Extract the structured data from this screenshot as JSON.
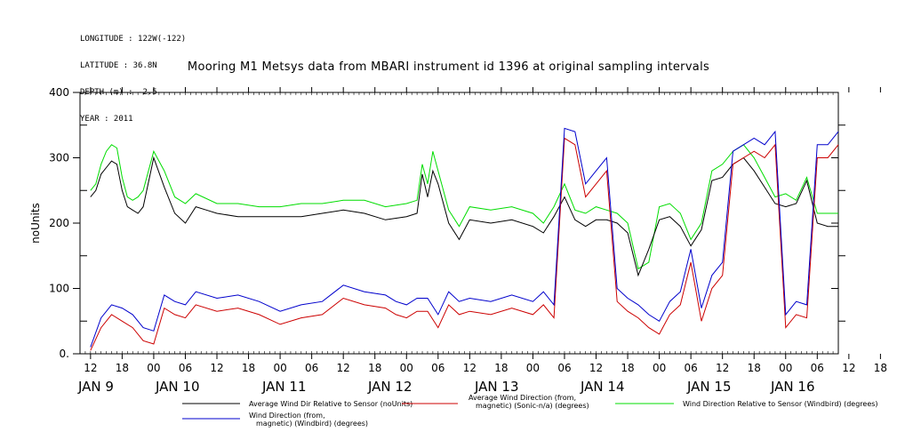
{
  "header": {
    "meta_lines": [
      "LONGITUDE : 122W(-122)",
      "LATITUDE : 36.8N",
      "DEPTH (m) : -2.5",
      "YEAR : 2011"
    ]
  },
  "chart_data": {
    "type": "line",
    "title": "Mooring M1 Metsys data from MBARI instrument id 1396 at original sampling intervals",
    "xlabel": "",
    "ylabel": "noUnits",
    "ylim": [
      0,
      400
    ],
    "xlim_hours": [
      -2,
      142
    ],
    "y_ticks": [
      0,
      100,
      200,
      300,
      400
    ],
    "y_tick_labels": [
      "0.",
      "100",
      "200",
      "300",
      "400"
    ],
    "x_tick_labels": [
      "12",
      "18",
      "00",
      "06",
      "12",
      "18",
      "00",
      "06",
      "12",
      "18",
      "00",
      "06",
      "12",
      "18",
      "00",
      "06",
      "12",
      "18",
      "00",
      "06",
      "12",
      "18",
      "00",
      "06",
      "12",
      "18",
      "00",
      "06",
      "12"
    ],
    "day_labels": [
      "JAN  9",
      "JAN 10",
      "JAN 11",
      "JAN 12",
      "JAN 13",
      "JAN 14",
      "JAN 15",
      "JAN 16"
    ],
    "grid": false,
    "legend": "bottom",
    "series": [
      {
        "name": "Average Wind Dir Relative to Sensor (noUnits)",
        "color": "#000000",
        "x": [
          0,
          1,
          2,
          3,
          4,
          5,
          6,
          7,
          8,
          9,
          10,
          12,
          14,
          16,
          18,
          20,
          22,
          24,
          28,
          32,
          36,
          40,
          44,
          48,
          52,
          56,
          60,
          62,
          63,
          64,
          65,
          66,
          68,
          70,
          72,
          76,
          80,
          84,
          86,
          88,
          90,
          92,
          94,
          96,
          98,
          100,
          102,
          104,
          106,
          108,
          110,
          112,
          114,
          116,
          118,
          120,
          122,
          124,
          126,
          128,
          130,
          132,
          134,
          136,
          138,
          140,
          142
        ],
        "values": [
          240,
          250,
          275,
          285,
          295,
          290,
          250,
          225,
          220,
          215,
          225,
          300,
          255,
          215,
          200,
          225,
          220,
          215,
          210,
          210,
          210,
          210,
          215,
          220,
          215,
          205,
          210,
          215,
          275,
          240,
          280,
          260,
          200,
          175,
          205,
          200,
          205,
          195,
          185,
          210,
          240,
          205,
          195,
          205,
          205,
          200,
          185,
          120,
          160,
          205,
          210,
          195,
          165,
          190,
          265,
          270,
          290,
          300,
          280,
          255,
          230,
          225,
          230,
          265,
          200,
          195,
          195
        ]
      },
      {
        "name": "Average Wind Direction (from, magnetic) (Sonic-n/a) (degrees)",
        "color": "#cc0000",
        "x": [
          0,
          2,
          4,
          6,
          8,
          10,
          12,
          14,
          16,
          18,
          20,
          24,
          28,
          32,
          36,
          40,
          44,
          48,
          52,
          56,
          58,
          60,
          62,
          64,
          66,
          68,
          70,
          72,
          76,
          80,
          84,
          86,
          88,
          90,
          92,
          94,
          96,
          98,
          100,
          102,
          104,
          106,
          108,
          110,
          112,
          114,
          116,
          118,
          120,
          122,
          124,
          126,
          128,
          130,
          132,
          134,
          136,
          138,
          140,
          142
        ],
        "values": [
          5,
          40,
          60,
          50,
          40,
          20,
          15,
          70,
          60,
          55,
          75,
          65,
          70,
          60,
          45,
          55,
          60,
          85,
          75,
          70,
          60,
          55,
          65,
          65,
          40,
          75,
          60,
          65,
          60,
          70,
          60,
          75,
          55,
          330,
          320,
          240,
          260,
          280,
          80,
          65,
          55,
          40,
          30,
          60,
          75,
          140,
          50,
          100,
          120,
          290,
          300,
          310,
          300,
          320,
          40,
          60,
          55,
          300,
          300,
          320
        ]
      },
      {
        "name": "Wind Direction Relative to Sensor (Windbird) (degrees)",
        "color": "#00dd00",
        "x": [
          0,
          1,
          2,
          3,
          4,
          5,
          6,
          7,
          8,
          9,
          10,
          12,
          14,
          16,
          18,
          20,
          24,
          28,
          32,
          36,
          40,
          44,
          48,
          52,
          56,
          60,
          62,
          63,
          64,
          65,
          66,
          68,
          70,
          72,
          76,
          80,
          84,
          86,
          88,
          90,
          92,
          94,
          96,
          98,
          100,
          102,
          104,
          106,
          108,
          110,
          112,
          114,
          116,
          118,
          120,
          122,
          124,
          126,
          128,
          130,
          132,
          134,
          136,
          138,
          140,
          142
        ],
        "values": [
          250,
          260,
          290,
          310,
          320,
          315,
          270,
          240,
          235,
          240,
          250,
          310,
          280,
          240,
          230,
          245,
          230,
          230,
          225,
          225,
          230,
          230,
          235,
          235,
          225,
          230,
          235,
          290,
          260,
          310,
          280,
          220,
          195,
          225,
          220,
          225,
          215,
          200,
          225,
          260,
          220,
          215,
          225,
          220,
          215,
          200,
          130,
          140,
          225,
          230,
          215,
          175,
          200,
          280,
          290,
          310,
          320,
          300,
          270,
          240,
          245,
          235,
          270,
          215,
          215,
          215
        ]
      },
      {
        "name": "Wind Direction (from, magnetic) (Windbird) (degrees)",
        "color": "#0000cc",
        "x": [
          0,
          2,
          4,
          6,
          8,
          10,
          12,
          14,
          16,
          18,
          20,
          24,
          28,
          32,
          36,
          40,
          44,
          48,
          52,
          56,
          58,
          60,
          62,
          64,
          66,
          68,
          70,
          72,
          76,
          80,
          84,
          86,
          88,
          90,
          92,
          94,
          96,
          98,
          100,
          102,
          104,
          106,
          108,
          110,
          112,
          114,
          116,
          118,
          120,
          122,
          124,
          126,
          128,
          130,
          132,
          134,
          136,
          138,
          140,
          142
        ],
        "values": [
          10,
          55,
          75,
          70,
          60,
          40,
          35,
          90,
          80,
          75,
          95,
          85,
          90,
          80,
          65,
          75,
          80,
          105,
          95,
          90,
          80,
          75,
          85,
          85,
          60,
          95,
          80,
          85,
          80,
          90,
          80,
          95,
          75,
          345,
          340,
          260,
          280,
          300,
          100,
          85,
          75,
          60,
          50,
          80,
          95,
          160,
          70,
          120,
          140,
          310,
          320,
          330,
          320,
          340,
          60,
          80,
          75,
          320,
          320,
          340
        ]
      }
    ]
  }
}
